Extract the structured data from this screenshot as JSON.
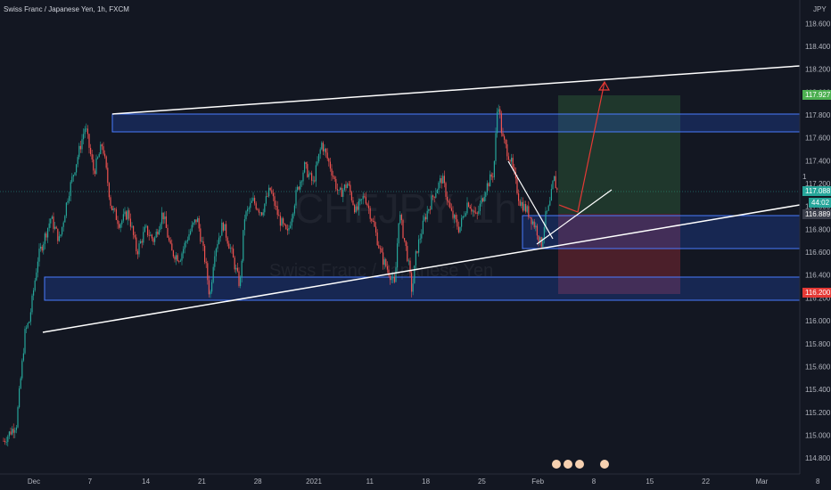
{
  "header": {
    "title": "Swiss Franc / Japanese Yen, 1h, FXCM",
    "currency": "JPY"
  },
  "watermark": {
    "symbol": "CHFJPY, 1h",
    "name": "Swiss Franc / Japanese Yen"
  },
  "price_tags": {
    "target": "117.927",
    "current": "117.088",
    "countdown": "44:02",
    "entry": "116.889",
    "stop": "116.200",
    "hidden_partial": "1"
  },
  "colors": {
    "background": "#131722",
    "bull": "#26a69a",
    "bear": "#ef5350",
    "zone_fill": "#2962ff",
    "trendline": "#ffffff",
    "target_zone": "#4caf50",
    "stop_zone": "#f23645"
  },
  "chart_data": {
    "type": "candlestick",
    "title": "Swiss Franc / Japanese Yen, 1h, FXCM",
    "ylabel": "JPY",
    "ylim": [
      114.7,
      118.75
    ],
    "y_ticks": [
      "118.600",
      "118.400",
      "118.200",
      "118.000",
      "117.800",
      "117.600",
      "117.400",
      "117.200",
      "117.000",
      "116.800",
      "116.600",
      "116.400",
      "116.200",
      "116.000",
      "115.800",
      "115.600",
      "115.400",
      "115.200",
      "115.000",
      "114.800"
    ],
    "x_ticks": [
      "Dec",
      "7",
      "14",
      "21",
      "28",
      "2021",
      "11",
      "18",
      "25",
      "Feb",
      "8",
      "15",
      "22",
      "Mar",
      "8"
    ],
    "price_path": [
      [
        0,
        114.95
      ],
      [
        1.5,
        115.1
      ],
      [
        2.5,
        115.9
      ],
      [
        3,
        116.0
      ],
      [
        4,
        116.55
      ],
      [
        5.5,
        116.9
      ],
      [
        6.5,
        116.7
      ],
      [
        7.5,
        117.1
      ],
      [
        8.5,
        117.4
      ],
      [
        9.5,
        117.7
      ],
      [
        10.5,
        117.3
      ],
      [
        11.5,
        117.55
      ],
      [
        12.5,
        117.0
      ],
      [
        13.5,
        116.85
      ],
      [
        14.5,
        116.95
      ],
      [
        15.5,
        116.6
      ],
      [
        16.5,
        116.8
      ],
      [
        17.5,
        116.7
      ],
      [
        18.5,
        116.95
      ],
      [
        19.5,
        116.6
      ],
      [
        20.5,
        116.55
      ],
      [
        21.5,
        116.75
      ],
      [
        22.5,
        116.9
      ],
      [
        23.5,
        116.5
      ],
      [
        24,
        116.2
      ],
      [
        24.5,
        116.6
      ],
      [
        25.5,
        116.85
      ],
      [
        26.5,
        116.6
      ],
      [
        27.5,
        116.3
      ],
      [
        28,
        116.9
      ],
      [
        29,
        117.05
      ],
      [
        30,
        116.95
      ],
      [
        31,
        117.15
      ],
      [
        32,
        116.9
      ],
      [
        33,
        116.75
      ],
      [
        34,
        117.1
      ],
      [
        35,
        117.35
      ],
      [
        36,
        117.2
      ],
      [
        37,
        117.55
      ],
      [
        38,
        117.35
      ],
      [
        39,
        117.1
      ],
      [
        40,
        117.2
      ],
      [
        41,
        116.95
      ],
      [
        42,
        117.1
      ],
      [
        43,
        116.85
      ],
      [
        44,
        116.55
      ],
      [
        45,
        116.4
      ],
      [
        45.5,
        116.3
      ],
      [
        46,
        116.95
      ],
      [
        47,
        116.55
      ],
      [
        47.5,
        116.25
      ],
      [
        48,
        116.6
      ],
      [
        49,
        116.9
      ],
      [
        50,
        117.1
      ],
      [
        51,
        117.25
      ],
      [
        52,
        116.95
      ],
      [
        53,
        116.8
      ],
      [
        54,
        117.05
      ],
      [
        55,
        116.9
      ],
      [
        56,
        117.15
      ],
      [
        57,
        117.3
      ],
      [
        57.5,
        117.95
      ],
      [
        58,
        117.6
      ],
      [
        59,
        117.4
      ],
      [
        60,
        117.05
      ],
      [
        61,
        116.95
      ],
      [
        62,
        116.8
      ],
      [
        62.5,
        116.65
      ],
      [
        63,
        116.9
      ],
      [
        63.5,
        117.0
      ],
      [
        64,
        117.25
      ],
      [
        64.5,
        117.1
      ]
    ],
    "zones": [
      {
        "name": "upper resistance",
        "from": 117.62,
        "to": 117.74
      },
      {
        "name": "lower support",
        "from": 116.16,
        "to": 116.32
      },
      {
        "name": "entry zone",
        "from": 116.58,
        "to": 116.87
      }
    ],
    "trendlines": [
      {
        "name": "upper channel",
        "points": [
          [
            9.5,
            117.74
          ],
          [
            58,
            117.99
          ],
          [
            96,
            118.2
          ]
        ]
      },
      {
        "name": "lower channel",
        "points": [
          [
            3,
            115.85
          ],
          [
            62,
            116.6
          ],
          [
            96,
            116.95
          ]
        ]
      }
    ],
    "position": {
      "type": "long",
      "entry": 116.889,
      "target": 117.927,
      "stop": 116.2
    }
  }
}
